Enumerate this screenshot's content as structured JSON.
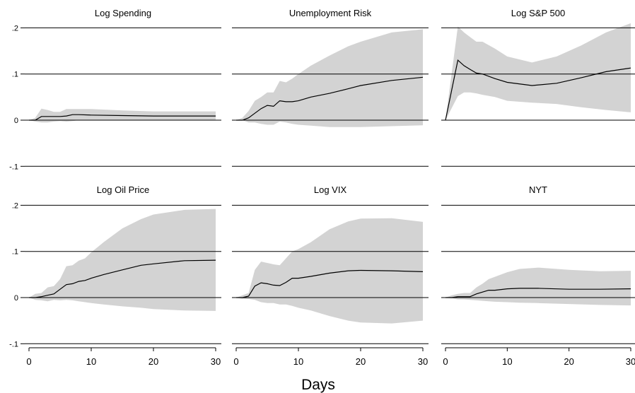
{
  "chart_data": {
    "type": "line",
    "xlabel": "Days",
    "xlim": [
      0,
      30
    ],
    "ylim": [
      -0.1,
      0.2
    ],
    "x_ticks": [
      0,
      10,
      20,
      30
    ],
    "x_tick_labels": [
      "0",
      "10",
      "20",
      "30"
    ],
    "y_ticks": [
      -0.1,
      0,
      0.1,
      0.2
    ],
    "y_tick_labels": [
      "-.1",
      "0",
      ".1",
      ".2"
    ],
    "grid": "horizontal at y ticks",
    "line_color": "#000000",
    "band_color": "#d3d3d3",
    "panels": [
      {
        "title": "Log Spending",
        "x": [
          0,
          1,
          2,
          3,
          4,
          5,
          6,
          7,
          8,
          10,
          15,
          20,
          25,
          30
        ],
        "y": [
          0,
          0,
          0.008,
          0.008,
          0.008,
          0.008,
          0.009,
          0.012,
          0.012,
          0.011,
          0.01,
          0.009,
          0.009,
          0.009
        ],
        "lower": [
          0,
          -0.003,
          -0.005,
          -0.005,
          -0.003,
          -0.002,
          -0.003,
          -0.002,
          0,
          0,
          0,
          0,
          0,
          0
        ],
        "upper": [
          0,
          0.005,
          0.025,
          0.022,
          0.018,
          0.018,
          0.024,
          0.024,
          0.024,
          0.024,
          0.021,
          0.019,
          0.019,
          0.019
        ]
      },
      {
        "title": "Unemployment Risk",
        "x": [
          0,
          1,
          2,
          3,
          4,
          5,
          6,
          7,
          8,
          9,
          10,
          12,
          15,
          18,
          20,
          25,
          30
        ],
        "y": [
          0,
          0,
          0.005,
          0.015,
          0.025,
          0.032,
          0.03,
          0.042,
          0.04,
          0.04,
          0.042,
          0.05,
          0.058,
          0.068,
          0.075,
          0.086,
          0.093
        ],
        "lower": [
          0,
          0,
          -0.005,
          -0.005,
          -0.008,
          -0.01,
          -0.01,
          -0.003,
          -0.005,
          -0.008,
          -0.01,
          -0.012,
          -0.015,
          -0.015,
          -0.015,
          -0.013,
          -0.011
        ],
        "upper": [
          0,
          0.005,
          0.02,
          0.042,
          0.05,
          0.06,
          0.06,
          0.085,
          0.082,
          0.09,
          0.1,
          0.118,
          0.14,
          0.16,
          0.17,
          0.19,
          0.197
        ]
      },
      {
        "title": "Log S&P 500",
        "x": [
          0,
          2,
          3,
          4,
          5,
          6,
          8,
          10,
          14,
          18,
          22,
          26,
          30
        ],
        "y": [
          0,
          0.13,
          0.118,
          0.11,
          0.102,
          0.1,
          0.09,
          0.082,
          0.075,
          0.08,
          0.092,
          0.105,
          0.113
        ],
        "lower": [
          0,
          0.052,
          0.06,
          0.06,
          0.058,
          0.055,
          0.05,
          0.042,
          0.038,
          0.035,
          0.028,
          0.022,
          0.017
        ],
        "upper": [
          0,
          0.203,
          0.19,
          0.18,
          0.17,
          0.17,
          0.155,
          0.138,
          0.125,
          0.138,
          0.162,
          0.19,
          0.21
        ]
      },
      {
        "title": "Log Oil Price",
        "x": [
          0,
          1,
          2,
          3,
          4,
          5,
          6,
          7,
          8,
          9,
          10,
          12,
          15,
          18,
          20,
          25,
          30
        ],
        "y": [
          0,
          0,
          0.002,
          0.005,
          0.008,
          0.018,
          0.028,
          0.03,
          0.035,
          0.037,
          0.042,
          0.05,
          0.06,
          0.07,
          0.073,
          0.08,
          0.081
        ],
        "lower": [
          0,
          -0.005,
          -0.006,
          -0.008,
          -0.005,
          -0.006,
          -0.005,
          -0.006,
          -0.008,
          -0.01,
          -0.012,
          -0.015,
          -0.019,
          -0.022,
          -0.025,
          -0.028,
          -0.029
        ],
        "upper": [
          0,
          0.008,
          0.01,
          0.022,
          0.025,
          0.04,
          0.068,
          0.07,
          0.08,
          0.085,
          0.098,
          0.12,
          0.15,
          0.17,
          0.18,
          0.19,
          0.192
        ]
      },
      {
        "title": "Log VIX",
        "x": [
          0,
          1,
          2,
          3,
          4,
          5,
          6,
          7,
          8,
          9,
          10,
          12,
          15,
          18,
          20,
          25,
          30
        ],
        "y": [
          0,
          0,
          0.003,
          0.025,
          0.032,
          0.03,
          0.027,
          0.026,
          0.033,
          0.042,
          0.042,
          0.046,
          0.053,
          0.058,
          0.059,
          0.058,
          0.056
        ],
        "lower": [
          0,
          -0.003,
          -0.003,
          -0.005,
          -0.01,
          -0.012,
          -0.012,
          -0.015,
          -0.015,
          -0.018,
          -0.022,
          -0.028,
          -0.04,
          -0.05,
          -0.054,
          -0.056,
          -0.05
        ],
        "upper": [
          0,
          0.005,
          0.01,
          0.06,
          0.078,
          0.075,
          0.072,
          0.07,
          0.085,
          0.1,
          0.105,
          0.12,
          0.148,
          0.165,
          0.171,
          0.172,
          0.164
        ]
      },
      {
        "title": "NYT",
        "x": [
          0,
          1,
          2,
          3,
          4,
          5,
          6,
          7,
          8,
          10,
          12,
          15,
          20,
          25,
          30
        ],
        "y": [
          0,
          0,
          0.002,
          0.002,
          0.002,
          0.008,
          0.012,
          0.016,
          0.016,
          0.019,
          0.02,
          0.02,
          0.018,
          0.018,
          0.019
        ],
        "lower": [
          0,
          -0.002,
          -0.004,
          -0.004,
          -0.005,
          -0.006,
          -0.007,
          -0.008,
          -0.009,
          -0.01,
          -0.011,
          -0.012,
          -0.014,
          -0.016,
          -0.017
        ],
        "upper": [
          0,
          0.005,
          0.008,
          0.01,
          0.01,
          0.022,
          0.03,
          0.04,
          0.045,
          0.055,
          0.062,
          0.065,
          0.06,
          0.057,
          0.058
        ]
      }
    ]
  }
}
